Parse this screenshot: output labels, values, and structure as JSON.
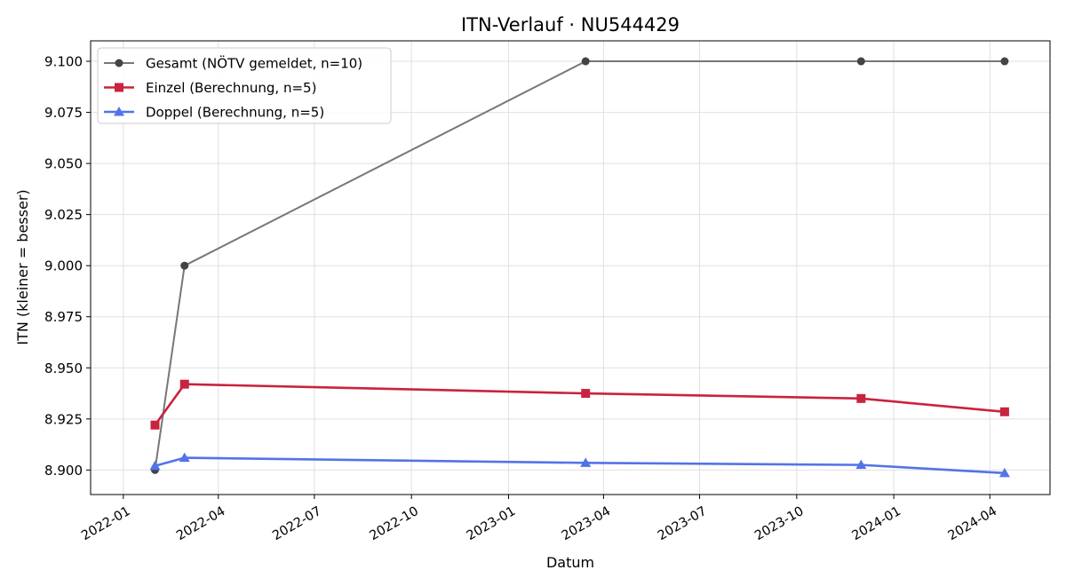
{
  "chart_data": {
    "type": "line",
    "title": "ITN-Verlauf · NU544429",
    "xlabel": "Datum",
    "ylabel": "ITN  (kleiner = besser)",
    "x_type": "date",
    "xlim": [
      "2021-12-01",
      "2024-05-28"
    ],
    "ylim": [
      8.888,
      9.11
    ],
    "x_ticks": [
      "2022-01-01",
      "2022-04-01",
      "2022-07-01",
      "2022-10-01",
      "2023-01-01",
      "2023-04-01",
      "2023-07-01",
      "2023-10-01",
      "2024-01-01",
      "2024-04-01"
    ],
    "x_tick_labels": [
      "2022-01",
      "2022-04",
      "2022-07",
      "2022-10",
      "2023-01",
      "2023-04",
      "2023-07",
      "2023-10",
      "2024-01",
      "2024-04"
    ],
    "y_ticks": [
      8.9,
      8.925,
      8.95,
      8.975,
      9.0,
      9.025,
      9.05,
      9.075,
      9.1
    ],
    "y_tick_labels": [
      "8.900",
      "8.925",
      "8.950",
      "8.975",
      "9.000",
      "9.025",
      "9.050",
      "9.075",
      "9.100"
    ],
    "grid": true,
    "legend_position": "top-left",
    "series": [
      {
        "name": "Gesamt (NÖTV gemeldet, n=10)",
        "color": "#777777",
        "marker_color": "#444444",
        "marker": "circle",
        "points": [
          {
            "x": "2022-01-31",
            "y": 8.9
          },
          {
            "x": "2022-02-28",
            "y": 9.0
          },
          {
            "x": "2023-03-15",
            "y": 9.1
          },
          {
            "x": "2023-12-01",
            "y": 9.1
          },
          {
            "x": "2024-04-15",
            "y": 9.1
          }
        ]
      },
      {
        "name": "Einzel (Berechnung, n=5)",
        "color": "#c8233f",
        "marker_color": "#c8233f",
        "marker": "square",
        "points": [
          {
            "x": "2022-01-31",
            "y": 8.922
          },
          {
            "x": "2022-02-28",
            "y": 8.942
          },
          {
            "x": "2023-03-15",
            "y": 8.9375
          },
          {
            "x": "2023-12-01",
            "y": 8.935
          },
          {
            "x": "2024-04-15",
            "y": 8.9285
          }
        ]
      },
      {
        "name": "Doppel (Berechnung, n=5)",
        "color": "#5373e8",
        "marker_color": "#5373e8",
        "marker": "triangle",
        "points": [
          {
            "x": "2022-01-31",
            "y": 8.902
          },
          {
            "x": "2022-02-28",
            "y": 8.906
          },
          {
            "x": "2023-03-15",
            "y": 8.9035
          },
          {
            "x": "2023-12-01",
            "y": 8.9025
          },
          {
            "x": "2024-04-15",
            "y": 8.8985
          }
        ]
      }
    ]
  }
}
